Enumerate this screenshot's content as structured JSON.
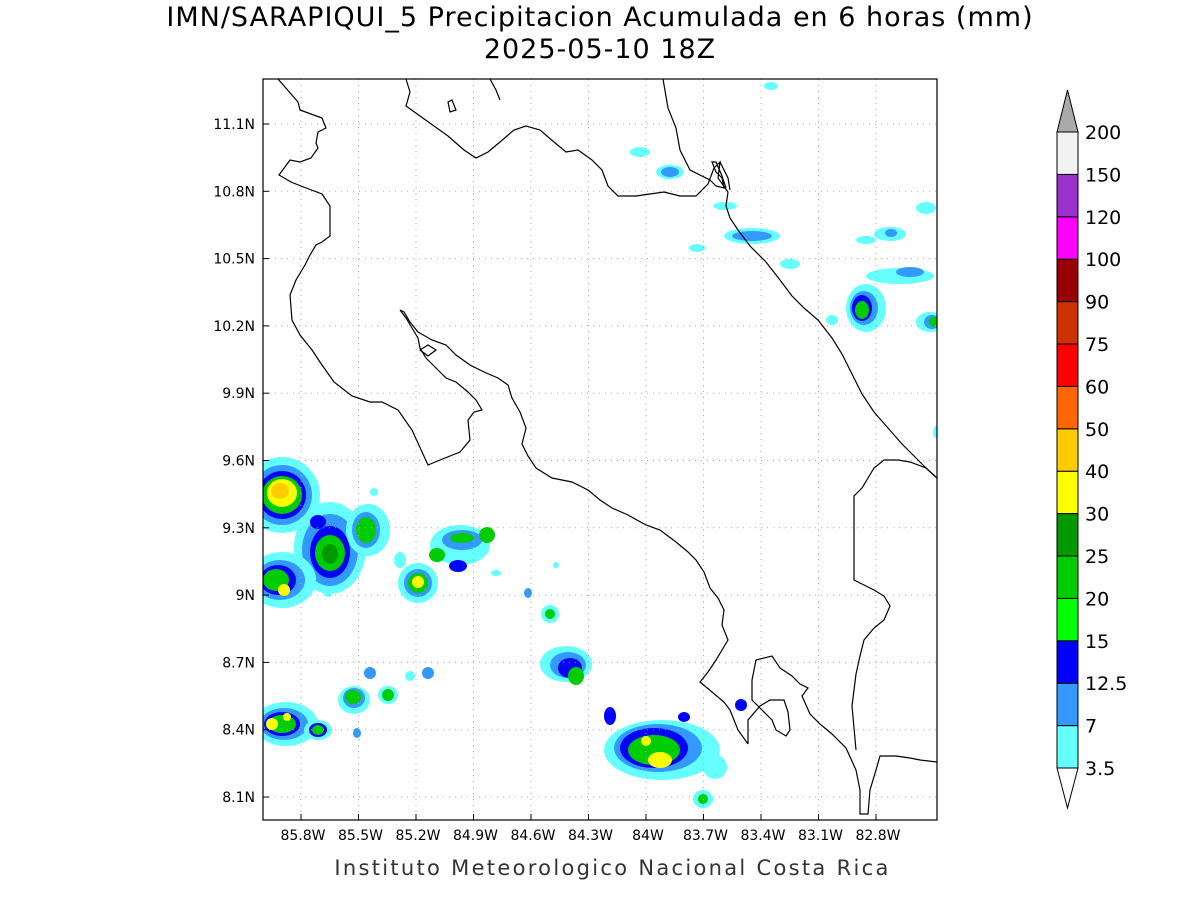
{
  "title": {
    "line1": "IMN/SARAPIQUI_5 Precipitacion Acumulada en 6 horas (mm)",
    "line2": "2025-05-10 18Z"
  },
  "footer": "Instituto Meteorologico Nacional Costa Rica",
  "map": {
    "lat_ticks": [
      "11.1N",
      "10.8N",
      "10.5N",
      "10.2N",
      "9.9N",
      "9.6N",
      "9.3N",
      "9N",
      "8.7N",
      "8.4N",
      "8.1N"
    ],
    "lon_ticks": [
      "85.8W",
      "85.5W",
      "85.2W",
      "84.9W",
      "84.6W",
      "84.3W",
      "84W",
      "83.7W",
      "83.4W",
      "83.1W",
      "82.8W"
    ],
    "grid": true,
    "coastline_color": "#000000"
  },
  "colorbar": {
    "labels": [
      "3.5",
      "7",
      "12.5",
      "15",
      "20",
      "25",
      "30",
      "40",
      "50",
      "60",
      "75",
      "90",
      "100",
      "120",
      "150",
      "200"
    ],
    "colors": [
      "#66ffff",
      "#3399ff",
      "#0000ff",
      "#00ff00",
      "#00cc00",
      "#009900",
      "#ffff00",
      "#ffcc00",
      "#ff6600",
      "#ff0000",
      "#cc3300",
      "#990000",
      "#ff00ff",
      "#9933cc",
      "#f2f2f2",
      "#aaaaaa"
    ]
  }
}
